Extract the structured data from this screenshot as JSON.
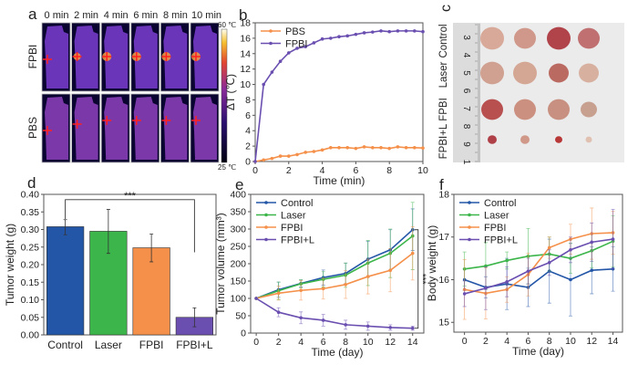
{
  "colors": {
    "control": "#2456a8",
    "laser": "#3cb54a",
    "fpbi": "#f5904a",
    "fpbil": "#6a4fb0",
    "pbs": "#f5904a"
  },
  "panel_a": {
    "letter": "a",
    "columns": [
      "0 min",
      "2 min",
      "4 min",
      "6 min",
      "8 min",
      "10 min"
    ],
    "rows": [
      "FPBI",
      "PBS"
    ],
    "colorbar_max": "60 ℃",
    "colorbar_min": "25 ℃"
  },
  "panel_c": {
    "letter": "c",
    "groups": [
      "Control",
      "Laser",
      "FPBI",
      "FPBI+L"
    ],
    "ruler_numbers": [
      "3",
      "4",
      "5",
      "6",
      "7",
      "8",
      "9",
      "1"
    ]
  },
  "chart_data": [
    {
      "panel": "b",
      "type": "line",
      "xlabel": "Time (min)",
      "ylabel": "ΔT (℃)",
      "xlim": [
        0,
        10
      ],
      "ylim": [
        0,
        18
      ],
      "xticks": [
        0,
        2,
        4,
        6,
        8,
        10
      ],
      "yticks": [
        0,
        2,
        4,
        6,
        8,
        10,
        12,
        14,
        16,
        18
      ],
      "legend": "top-left",
      "x": [
        0,
        0.5,
        1,
        1.5,
        2,
        2.5,
        3,
        3.5,
        4,
        4.5,
        5,
        5.5,
        6,
        6.5,
        7,
        7.5,
        8,
        8.5,
        9,
        9.5,
        10
      ],
      "series": [
        {
          "name": "PBS",
          "color": "#f5904a",
          "values": [
            0,
            0.2,
            0.4,
            0.7,
            0.7,
            0.9,
            1.2,
            1.3,
            1.5,
            1.8,
            1.8,
            1.8,
            1.7,
            1.9,
            1.8,
            1.8,
            1.7,
            1.9,
            1.8,
            1.8,
            1.75
          ]
        },
        {
          "name": "FPBI",
          "color": "#6a4fb0",
          "values": [
            0,
            10,
            11.6,
            13,
            14.1,
            14.7,
            14.9,
            15.4,
            15.9,
            16.0,
            16.2,
            16.3,
            16.5,
            16.7,
            16.8,
            16.95,
            16.85,
            16.95,
            16.95,
            16.95,
            16.85
          ]
        }
      ]
    },
    {
      "panel": "d",
      "type": "bar",
      "ylabel": "Tumor weight (g)",
      "ylim": [
        0,
        0.4
      ],
      "yticks": [
        0,
        0.05,
        0.1,
        0.15,
        0.2,
        0.25,
        0.3,
        0.35,
        0.4
      ],
      "categories": [
        "Control",
        "Laser",
        "FPBI",
        "FPBI+L"
      ],
      "values": [
        0.308,
        0.295,
        0.248,
        0.05
      ],
      "error_low": [
        0.285,
        0.232,
        0.208,
        0.023
      ],
      "error_high": [
        0.328,
        0.357,
        0.287,
        0.077
      ],
      "bar_colors": [
        "#2456a8",
        "#3cb54a",
        "#f5904a",
        "#6a4fb0"
      ],
      "significance": {
        "label": "***",
        "from": "Control",
        "to": "FPBI+L",
        "level": 0.385,
        "drop_to": [
          0.33,
          0.235
        ]
      }
    },
    {
      "panel": "e",
      "type": "line",
      "xlabel": "Time (day)",
      "ylabel": "Tumor volume (mm³)",
      "xlim": [
        -0.5,
        15
      ],
      "ylim": [
        0,
        400
      ],
      "xticks": [
        0,
        2,
        4,
        6,
        8,
        10,
        12,
        14
      ],
      "yticks": [
        0,
        50,
        100,
        150,
        200,
        250,
        300,
        350,
        400
      ],
      "legend": "top-left",
      "x": [
        0,
        2,
        4,
        6,
        8,
        10,
        12,
        14
      ],
      "series": [
        {
          "name": "Control",
          "color": "#2456a8",
          "values": [
            100,
            125,
            143,
            160,
            172,
            213,
            240,
            298
          ],
          "error": [
            0,
            22,
            10,
            22,
            30,
            52,
            58,
            60
          ]
        },
        {
          "name": "Laser",
          "color": "#3cb54a",
          "values": [
            100,
            122,
            142,
            155,
            167,
            202,
            230,
            280
          ],
          "error": [
            0,
            25,
            12,
            22,
            35,
            65,
            70,
            97
          ]
        },
        {
          "name": "FPBI",
          "color": "#f5904a",
          "values": [
            100,
            115,
            123,
            128,
            140,
            163,
            181,
            230
          ],
          "error": [
            0,
            20,
            28,
            30,
            40,
            50,
            62,
            77
          ]
        },
        {
          "name": "FPBI+L",
          "color": "#6a4fb0",
          "values": [
            100,
            60,
            44,
            37,
            24,
            20,
            16,
            14
          ],
          "error": [
            0,
            13,
            17,
            17,
            13,
            12,
            8,
            6
          ]
        }
      ],
      "significance": {
        "label": "***",
        "from_value": 298,
        "to_value": 14
      }
    },
    {
      "panel": "f",
      "type": "line",
      "xlabel": "Time (day)",
      "ylabel": "Body weight (g)",
      "xlim": [
        -1,
        14.9
      ],
      "ylim": [
        14.77,
        18
      ],
      "xticks": [
        0,
        2,
        4,
        6,
        8,
        10,
        12,
        14
      ],
      "yticks": [
        15,
        16,
        17,
        18
      ],
      "legend": "top-left",
      "x": [
        0,
        2,
        4,
        6,
        8,
        10,
        12,
        14
      ],
      "series": [
        {
          "name": "Control",
          "color": "#2456a8",
          "values": [
            16.0,
            15.82,
            15.9,
            15.82,
            16.2,
            16.0,
            16.22,
            16.25
          ],
          "error": [
            0.25,
            0.25,
            0.6,
            0.45,
            0.75,
            0.85,
            0.55,
            0.52
          ]
        },
        {
          "name": "Laser",
          "color": "#3cb54a",
          "values": [
            16.25,
            16.32,
            16.45,
            16.55,
            16.6,
            16.5,
            16.68,
            16.9
          ],
          "error": [
            0.4,
            0.55,
            0.2,
            0.65,
            0.4,
            0.35,
            0.4,
            0.6
          ]
        },
        {
          "name": "FPBI",
          "color": "#f5904a",
          "values": [
            15.77,
            15.68,
            15.77,
            16.12,
            16.75,
            16.95,
            17.08,
            17.1
          ],
          "error": [
            0.7,
            0.6,
            0.3,
            0.5,
            0.25,
            0.35,
            0.6,
            0.5
          ]
        },
        {
          "name": "FPBI+L",
          "color": "#6a4fb0",
          "values": [
            15.67,
            15.8,
            15.95,
            16.2,
            16.4,
            16.7,
            16.88,
            16.95
          ],
          "error": [
            0.3,
            0.5,
            0.35,
            0.3,
            0.3,
            0.3,
            0.45,
            0.7
          ]
        }
      ]
    }
  ]
}
